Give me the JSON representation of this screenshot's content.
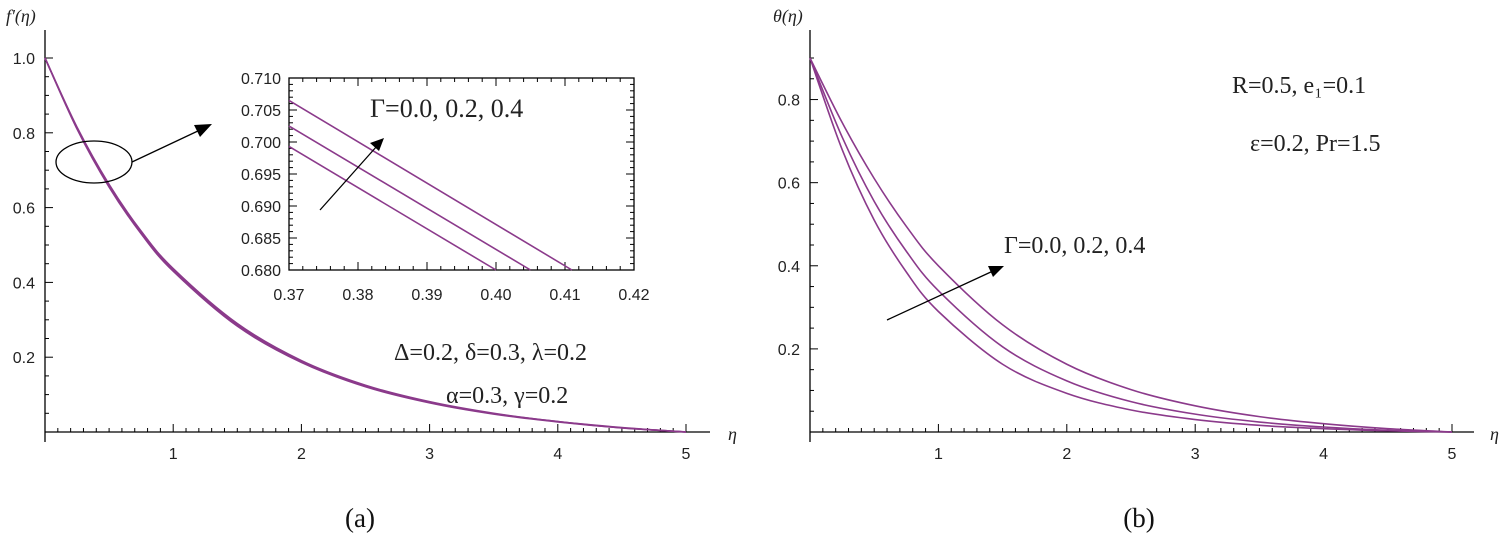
{
  "captions": [
    "(a)",
    "(b)"
  ],
  "colors": {
    "curve": "#8B3A8B",
    "axis": "#000000",
    "text": "#222222"
  },
  "chart_data": [
    {
      "type": "line",
      "panel": "(a)",
      "ylabel": "f'(η)",
      "xlabel": "η",
      "xlim": [
        0,
        5
      ],
      "ylim": [
        0,
        1.0
      ],
      "xticks": [
        "1",
        "2",
        "3",
        "4",
        "5"
      ],
      "yticks": [
        "0.2",
        "0.4",
        "0.6",
        "0.8",
        "1.0"
      ],
      "annotations": [
        "Δ=0.2, δ=0.3, λ=0.2",
        "α=0.3, γ=0.2"
      ],
      "series": [
        {
          "x": [
            0,
            0.25,
            0.5,
            0.75,
            1.0,
            1.5,
            2.0,
            2.5,
            3.0,
            3.5,
            4.0,
            4.5,
            5.0
          ],
          "y": [
            1.0,
            0.81,
            0.655,
            0.53,
            0.43,
            0.283,
            0.186,
            0.121,
            0.078,
            0.048,
            0.027,
            0.011,
            0.0
          ]
        },
        {
          "x": [
            0,
            0.25,
            0.5,
            0.75,
            1.0,
            1.5,
            2.0,
            2.5,
            3.0,
            3.5,
            4.0,
            4.5,
            5.0
          ],
          "y": [
            1.0,
            0.812,
            0.658,
            0.533,
            0.433,
            0.286,
            0.188,
            0.123,
            0.079,
            0.049,
            0.028,
            0.011,
            0.0
          ]
        },
        {
          "x": [
            0,
            0.25,
            0.5,
            0.75,
            1.0,
            1.5,
            2.0,
            2.5,
            3.0,
            3.5,
            4.0,
            4.5,
            5.0
          ],
          "y": [
            1.0,
            0.815,
            0.662,
            0.537,
            0.437,
            0.29,
            0.191,
            0.125,
            0.081,
            0.05,
            0.028,
            0.012,
            0.0
          ]
        }
      ],
      "inset": {
        "xlim": [
          0.37,
          0.42
        ],
        "ylim": [
          0.68,
          0.71
        ],
        "xticks": [
          "0.37",
          "0.38",
          "0.39",
          "0.40",
          "0.41",
          "0.42"
        ],
        "yticks": [
          "0.680",
          "0.685",
          "0.690",
          "0.695",
          "0.700",
          "0.705",
          "0.710"
        ],
        "annotation": "Γ=0.0, 0.2, 0.4",
        "series": [
          {
            "x": [
              0.37,
              0.4
            ],
            "y": [
              0.6993,
              0.68
            ]
          },
          {
            "x": [
              0.37,
              0.405
            ],
            "y": [
              0.7025,
              0.68
            ]
          },
          {
            "x": [
              0.37,
              0.411
            ],
            "y": [
              0.7065,
              0.68
            ]
          }
        ]
      }
    },
    {
      "type": "line",
      "panel": "(b)",
      "ylabel": "θ(η)",
      "xlabel": "η",
      "xlim": [
        0,
        5
      ],
      "ylim": [
        0,
        0.9
      ],
      "xticks": [
        "1",
        "2",
        "3",
        "4",
        "5"
      ],
      "yticks": [
        "0.2",
        "0.4",
        "0.6",
        "0.8"
      ],
      "annotations": [
        "R=0.5, e₁=0.1",
        "ε=0.2, Pr=1.5",
        "Γ=0.0, 0.2, 0.4"
      ],
      "series": [
        {
          "x": [
            0,
            0.25,
            0.5,
            0.75,
            1.0,
            1.5,
            2.0,
            2.5,
            3.0,
            3.5,
            4.0,
            4.5,
            5.0
          ],
          "y": [
            0.9,
            0.68,
            0.51,
            0.385,
            0.29,
            0.163,
            0.093,
            0.053,
            0.03,
            0.016,
            0.008,
            0.003,
            0.0
          ]
        },
        {
          "x": [
            0,
            0.25,
            0.5,
            0.75,
            1.0,
            1.5,
            2.0,
            2.5,
            3.0,
            3.5,
            4.0,
            4.5,
            5.0
          ],
          "y": [
            0.9,
            0.71,
            0.555,
            0.435,
            0.34,
            0.205,
            0.123,
            0.073,
            0.043,
            0.024,
            0.012,
            0.004,
            0.0
          ]
        },
        {
          "x": [
            0,
            0.25,
            0.5,
            0.75,
            1.0,
            1.5,
            2.0,
            2.5,
            3.0,
            3.5,
            4.0,
            4.5,
            5.0
          ],
          "y": [
            0.9,
            0.745,
            0.61,
            0.495,
            0.4,
            0.258,
            0.163,
            0.102,
            0.063,
            0.037,
            0.02,
            0.008,
            0.0
          ]
        }
      ]
    }
  ]
}
